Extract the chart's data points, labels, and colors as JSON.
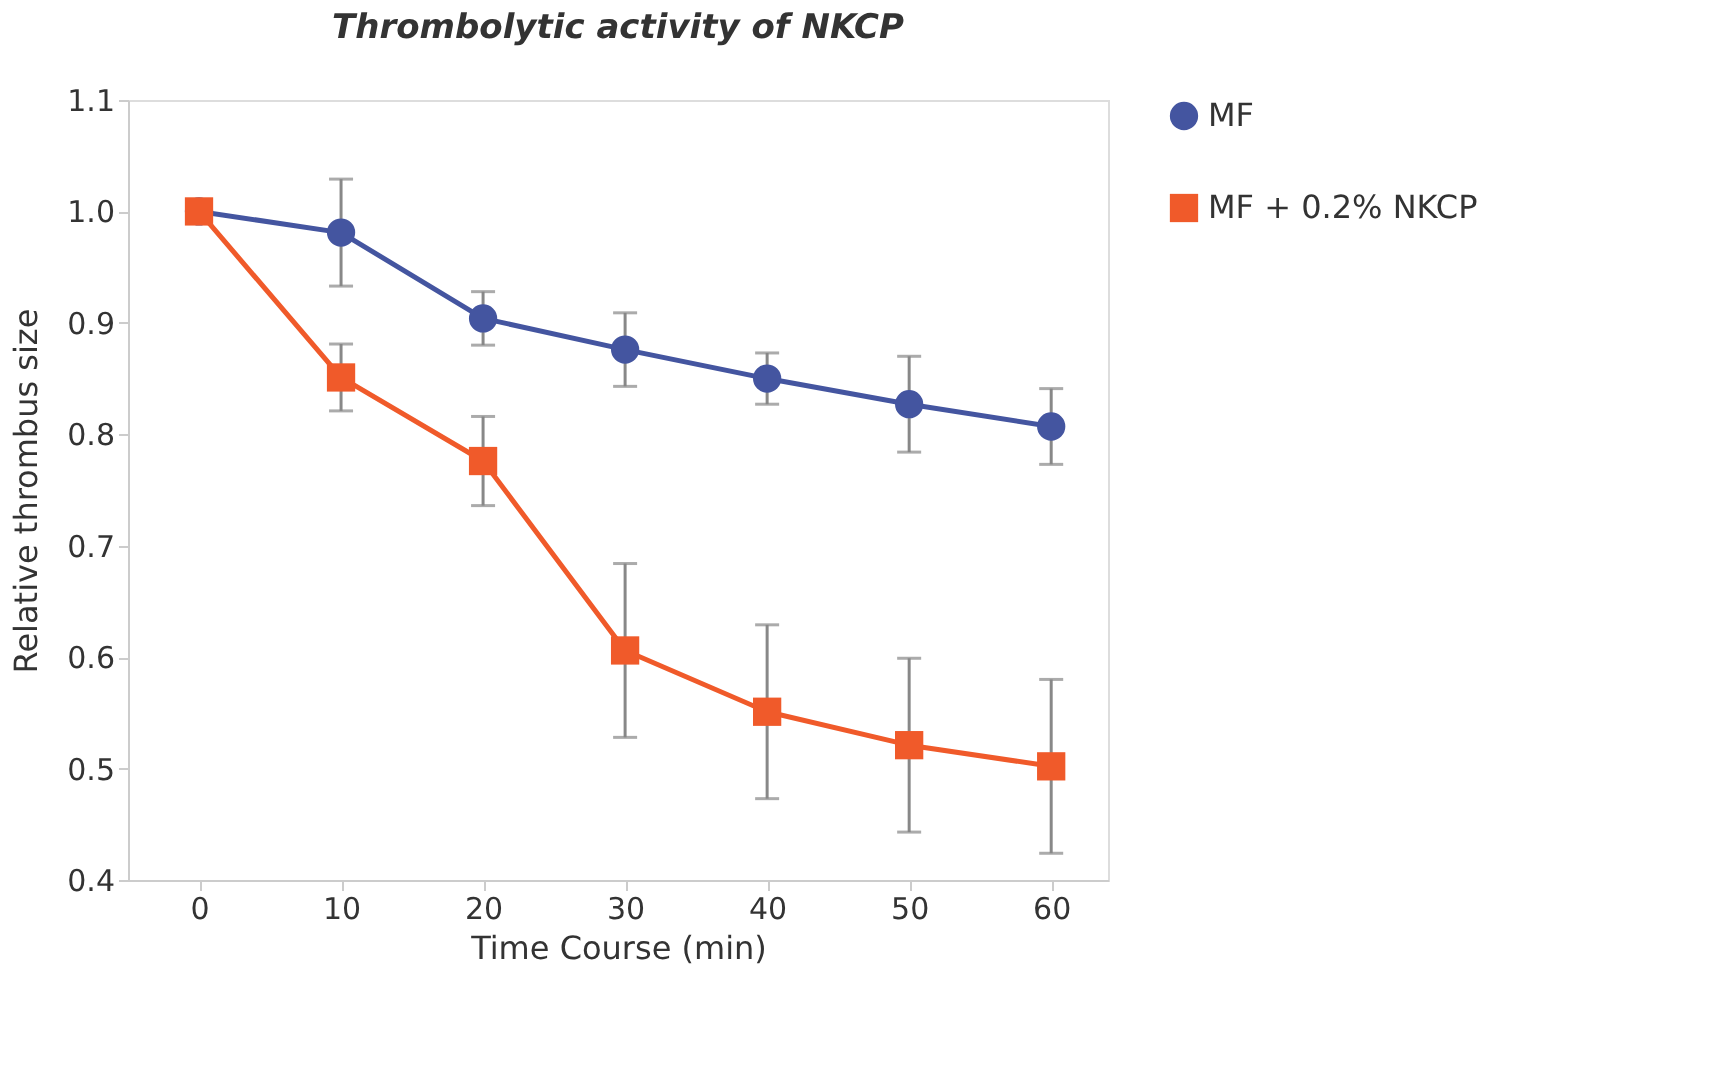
{
  "chart_data": {
    "type": "line",
    "title": "Thrombolytic activity of NKCP",
    "xlabel": "Time Course (min)",
    "ylabel": "Relative thrombus size",
    "x": [
      0,
      10,
      20,
      30,
      40,
      50,
      60
    ],
    "xlim": [
      -5,
      64
    ],
    "xticks": [
      0,
      10,
      20,
      30,
      40,
      50,
      60
    ],
    "ylim": [
      0.4,
      1.1
    ],
    "yticks": [
      0.4,
      0.5,
      0.6,
      0.7,
      0.8,
      0.9,
      {
        "value": 1.0,
        "label": "1.0"
      },
      1.1
    ],
    "grid": false,
    "legend": "top right",
    "series": [
      {
        "name": "MF",
        "color": "#4455a0",
        "marker": "circle",
        "values": [
          1.0,
          0.981,
          0.904,
          0.876,
          0.85,
          0.827,
          0.807
        ],
        "errors": [
          null,
          0.048,
          0.024,
          0.033,
          0.023,
          0.043,
          0.034
        ]
      },
      {
        "name": "MF + 0.2% NKCP",
        "color": "#f05a2a",
        "marker": "square",
        "values": [
          1.0,
          0.851,
          0.776,
          0.606,
          0.551,
          0.521,
          0.502
        ],
        "errors": [
          null,
          0.03,
          0.04,
          0.078,
          0.078,
          0.078,
          0.078
        ]
      }
    ]
  }
}
